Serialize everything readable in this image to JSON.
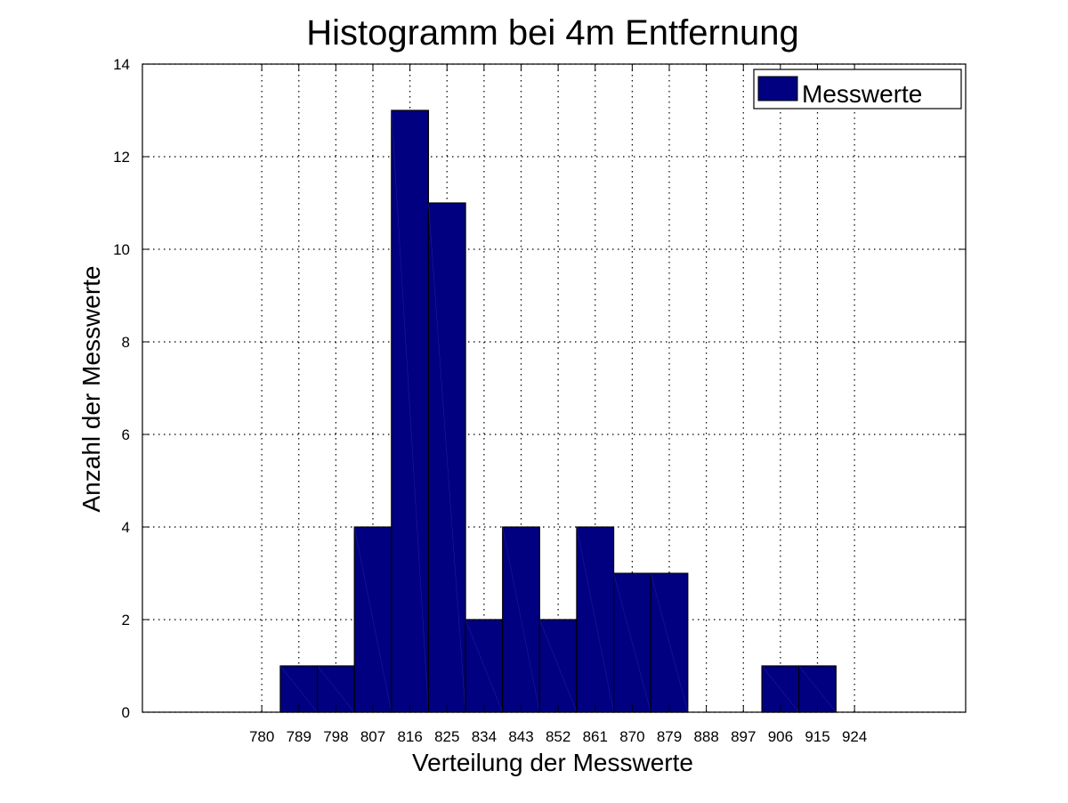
{
  "chart_data": {
    "type": "bar",
    "title": "Histogramm bei 4m Entfernung",
    "xlabel": "Verteilung der Messwerte",
    "ylabel": "Anzahl der Messwerte",
    "categories": [
      789,
      798,
      807,
      816,
      825,
      834,
      843,
      852,
      861,
      870,
      879,
      888,
      897,
      906,
      915
    ],
    "series": [
      {
        "name": "Messwerte",
        "values": [
          1,
          1,
          4,
          13,
          11,
          2,
          4,
          2,
          4,
          3,
          3,
          0,
          0,
          1,
          1
        ]
      }
    ],
    "xticks": [
      "780",
      "789",
      "798",
      "807",
      "816",
      "825",
      "834",
      "843",
      "852",
      "861",
      "870",
      "879",
      "888",
      "897",
      "906",
      "915",
      "924"
    ],
    "yticks": [
      "0",
      "2",
      "4",
      "6",
      "8",
      "10",
      "12",
      "14"
    ],
    "xlim": [
      751,
      951
    ],
    "ylim": [
      0,
      14
    ],
    "grid": true,
    "legend_position": "top-right",
    "colors": {
      "bar_fill": "#000080",
      "bar_edge": "#000000",
      "grid": "#000000",
      "background": "#ffffff"
    }
  }
}
